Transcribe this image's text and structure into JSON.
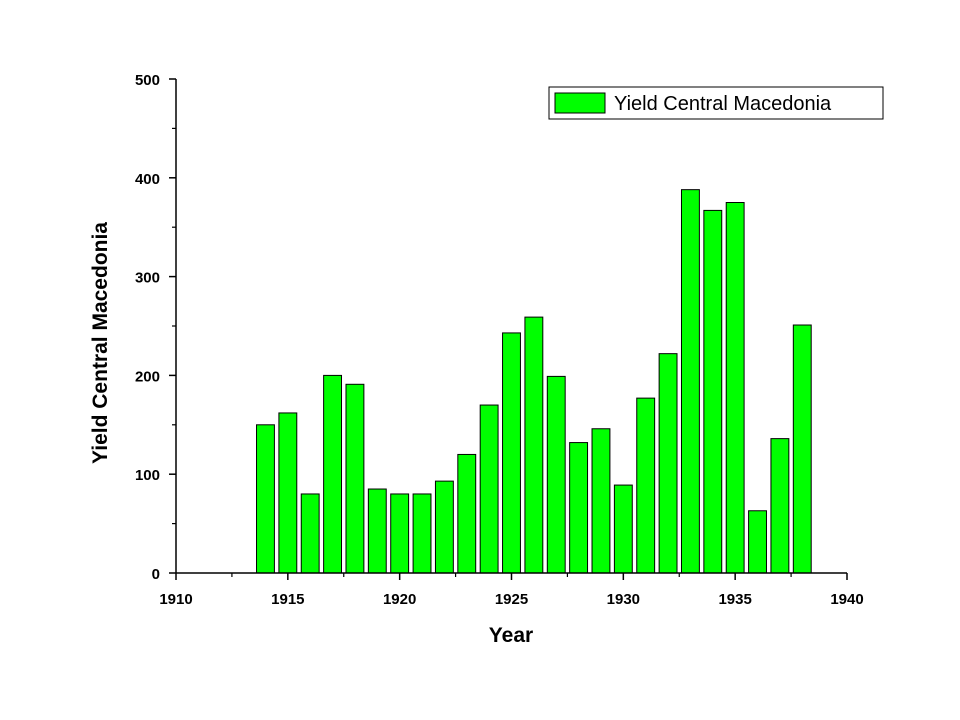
{
  "chart_data": {
    "type": "bar",
    "xlabel": "Year",
    "ylabel": "Yield Central Macedonia",
    "xlim": [
      1910,
      1940
    ],
    "ylim": [
      0,
      500
    ],
    "x_major_ticks": [
      1910,
      1915,
      1920,
      1925,
      1930,
      1935,
      1940
    ],
    "x_major_tick_labels": [
      "1910",
      "1915",
      "1920",
      "1925",
      "1930",
      "1935",
      "1940"
    ],
    "y_major_ticks": [
      0,
      100,
      200,
      300,
      400,
      500
    ],
    "y_major_tick_labels": [
      "0",
      "100",
      "200",
      "300",
      "400",
      "500"
    ],
    "grid": false,
    "legend_position": "top-right",
    "bar_color": "#00ff00",
    "series": [
      {
        "name": "Yield Central Macedonia",
        "x": [
          1914,
          1915,
          1916,
          1917,
          1918,
          1919,
          1920,
          1921,
          1922,
          1923,
          1924,
          1925,
          1926,
          1927,
          1928,
          1929,
          1930,
          1931,
          1932,
          1933,
          1934,
          1935,
          1936,
          1937,
          1938
        ],
        "values": [
          150,
          162,
          80,
          200,
          191,
          85,
          80,
          80,
          93,
          120,
          170,
          243,
          259,
          199,
          132,
          146,
          89,
          177,
          222,
          388,
          367,
          375,
          63,
          136,
          251
        ]
      }
    ]
  }
}
